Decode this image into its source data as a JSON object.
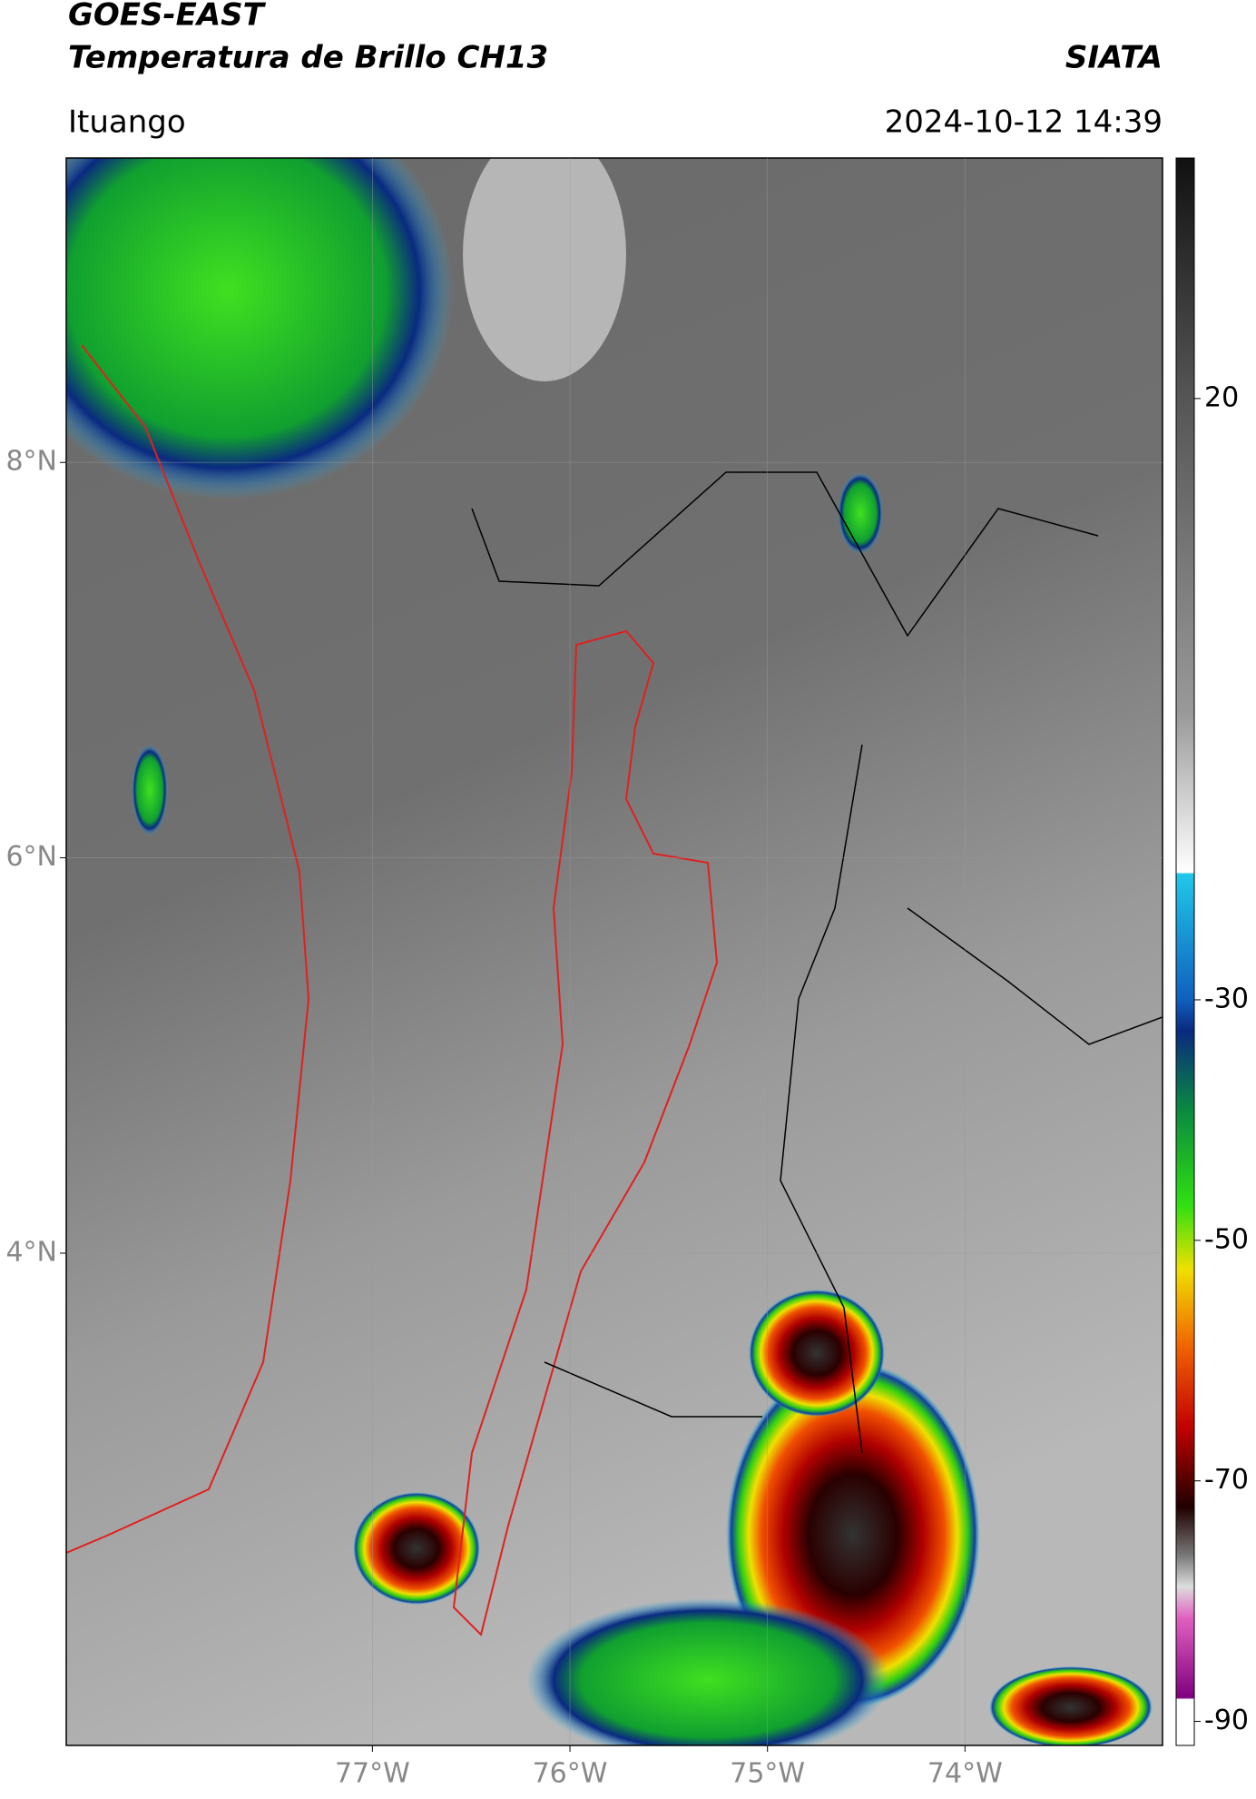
{
  "header": {
    "title": "GOES-EAST",
    "subtitle": "Temperatura de Brillo CH13",
    "source": "SIATA",
    "location": "Ituango",
    "datetime": "2024-10-12 14:39"
  },
  "map": {
    "xlim": [
      -78.55,
      -73.0
    ],
    "ylim": [
      1.51,
      9.54
    ],
    "xticks": [
      {
        "value": -77,
        "label": "77°W"
      },
      {
        "value": -76,
        "label": "76°W"
      },
      {
        "value": -75,
        "label": "75°W"
      },
      {
        "value": -74,
        "label": "74°W"
      }
    ],
    "yticks": [
      {
        "value": 8,
        "label": "8°N"
      },
      {
        "value": 6,
        "label": "6°N"
      },
      {
        "value": 4,
        "label": "4°N"
      }
    ],
    "grid": true
  },
  "colorbar": {
    "lim": [
      -92,
      40
    ],
    "ticks": [
      20,
      -30,
      -50,
      -70,
      -90
    ]
  }
}
